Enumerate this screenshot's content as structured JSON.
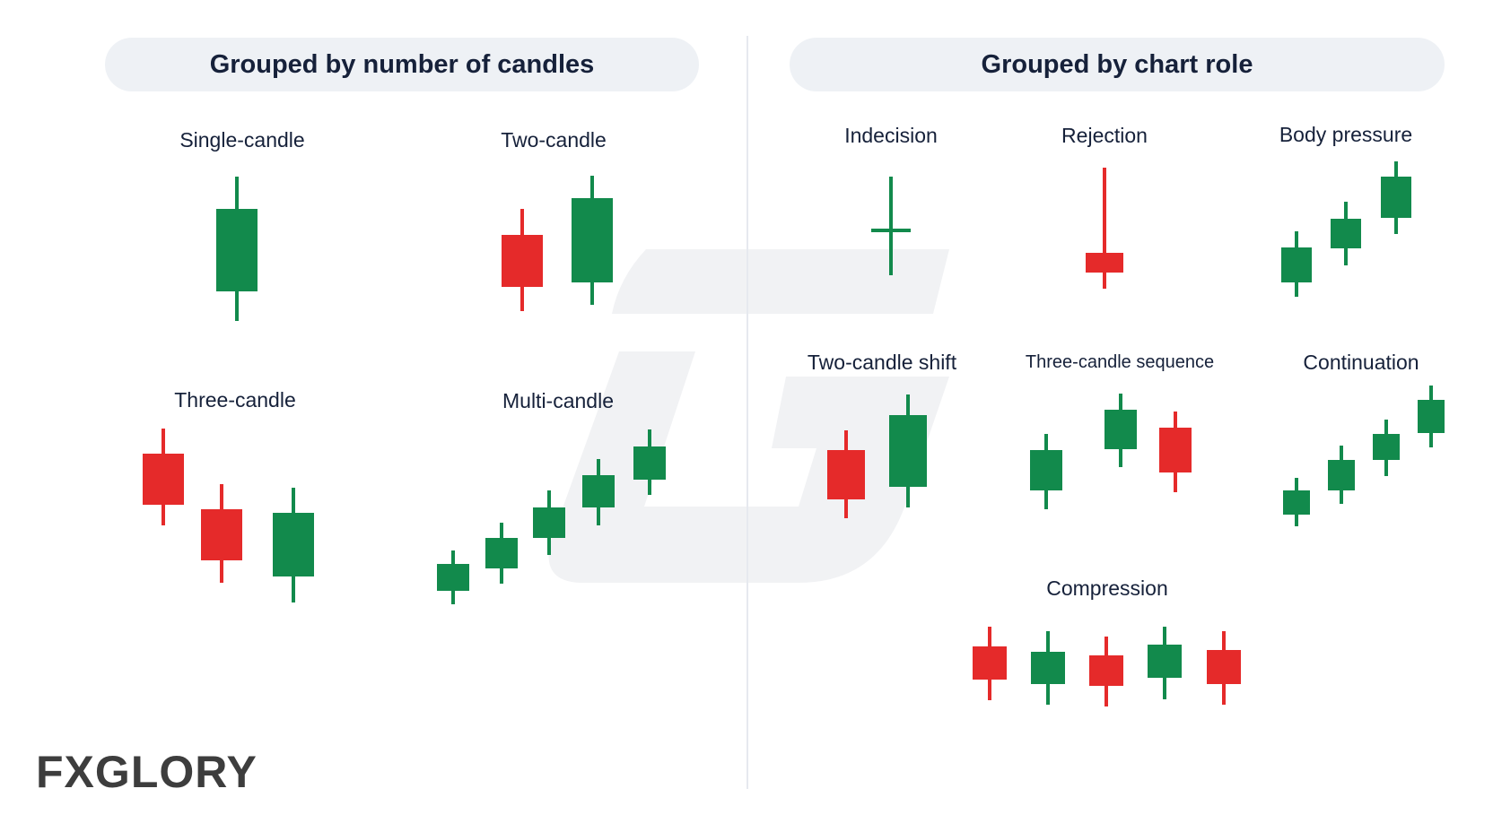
{
  "headers": {
    "left": "Grouped by number of candles",
    "right": "Grouped by chart role"
  },
  "labels": {
    "single": "Single-candle",
    "two": "Two-candle",
    "three": "Three-candle",
    "multi": "Multi-candle",
    "indecision": "Indecision",
    "rejection": "Rejection",
    "body_pressure": "Body pressure",
    "two_shift": "Two-candle shift",
    "three_seq": "Three-candle sequence",
    "continuation": "Continuation",
    "compression": "Compression"
  },
  "logo": "FXGLORY",
  "colors": {
    "bull": "#128a4c",
    "bear": "#e52a2a",
    "text": "#16213a",
    "pill": "#eef1f5",
    "watermark": "#f1f2f4"
  },
  "groups": [
    {
      "name": "single",
      "candles": [
        {
          "dir": "bull"
        }
      ]
    },
    {
      "name": "two",
      "candles": [
        {
          "dir": "bear"
        },
        {
          "dir": "bull"
        }
      ]
    },
    {
      "name": "three",
      "candles": [
        {
          "dir": "bear"
        },
        {
          "dir": "bear"
        },
        {
          "dir": "bull"
        }
      ]
    },
    {
      "name": "multi",
      "candles": [
        {
          "dir": "bull"
        },
        {
          "dir": "bull"
        },
        {
          "dir": "bull"
        },
        {
          "dir": "bull"
        },
        {
          "dir": "bull"
        }
      ]
    },
    {
      "name": "indecision",
      "candles": [
        {
          "dir": "doji"
        }
      ]
    },
    {
      "name": "rejection",
      "candles": [
        {
          "dir": "bear"
        }
      ]
    },
    {
      "name": "body_pressure",
      "candles": [
        {
          "dir": "bull"
        },
        {
          "dir": "bull"
        },
        {
          "dir": "bull"
        }
      ]
    },
    {
      "name": "two_shift",
      "candles": [
        {
          "dir": "bear"
        },
        {
          "dir": "bull"
        }
      ]
    },
    {
      "name": "three_seq",
      "candles": [
        {
          "dir": "bull"
        },
        {
          "dir": "bull"
        },
        {
          "dir": "bear"
        }
      ]
    },
    {
      "name": "continuation",
      "candles": [
        {
          "dir": "bull"
        },
        {
          "dir": "bull"
        },
        {
          "dir": "bull"
        },
        {
          "dir": "bull"
        }
      ]
    },
    {
      "name": "compression",
      "candles": [
        {
          "dir": "bear"
        },
        {
          "dir": "bull"
        },
        {
          "dir": "bear"
        },
        {
          "dir": "bull"
        },
        {
          "dir": "bear"
        }
      ]
    }
  ]
}
